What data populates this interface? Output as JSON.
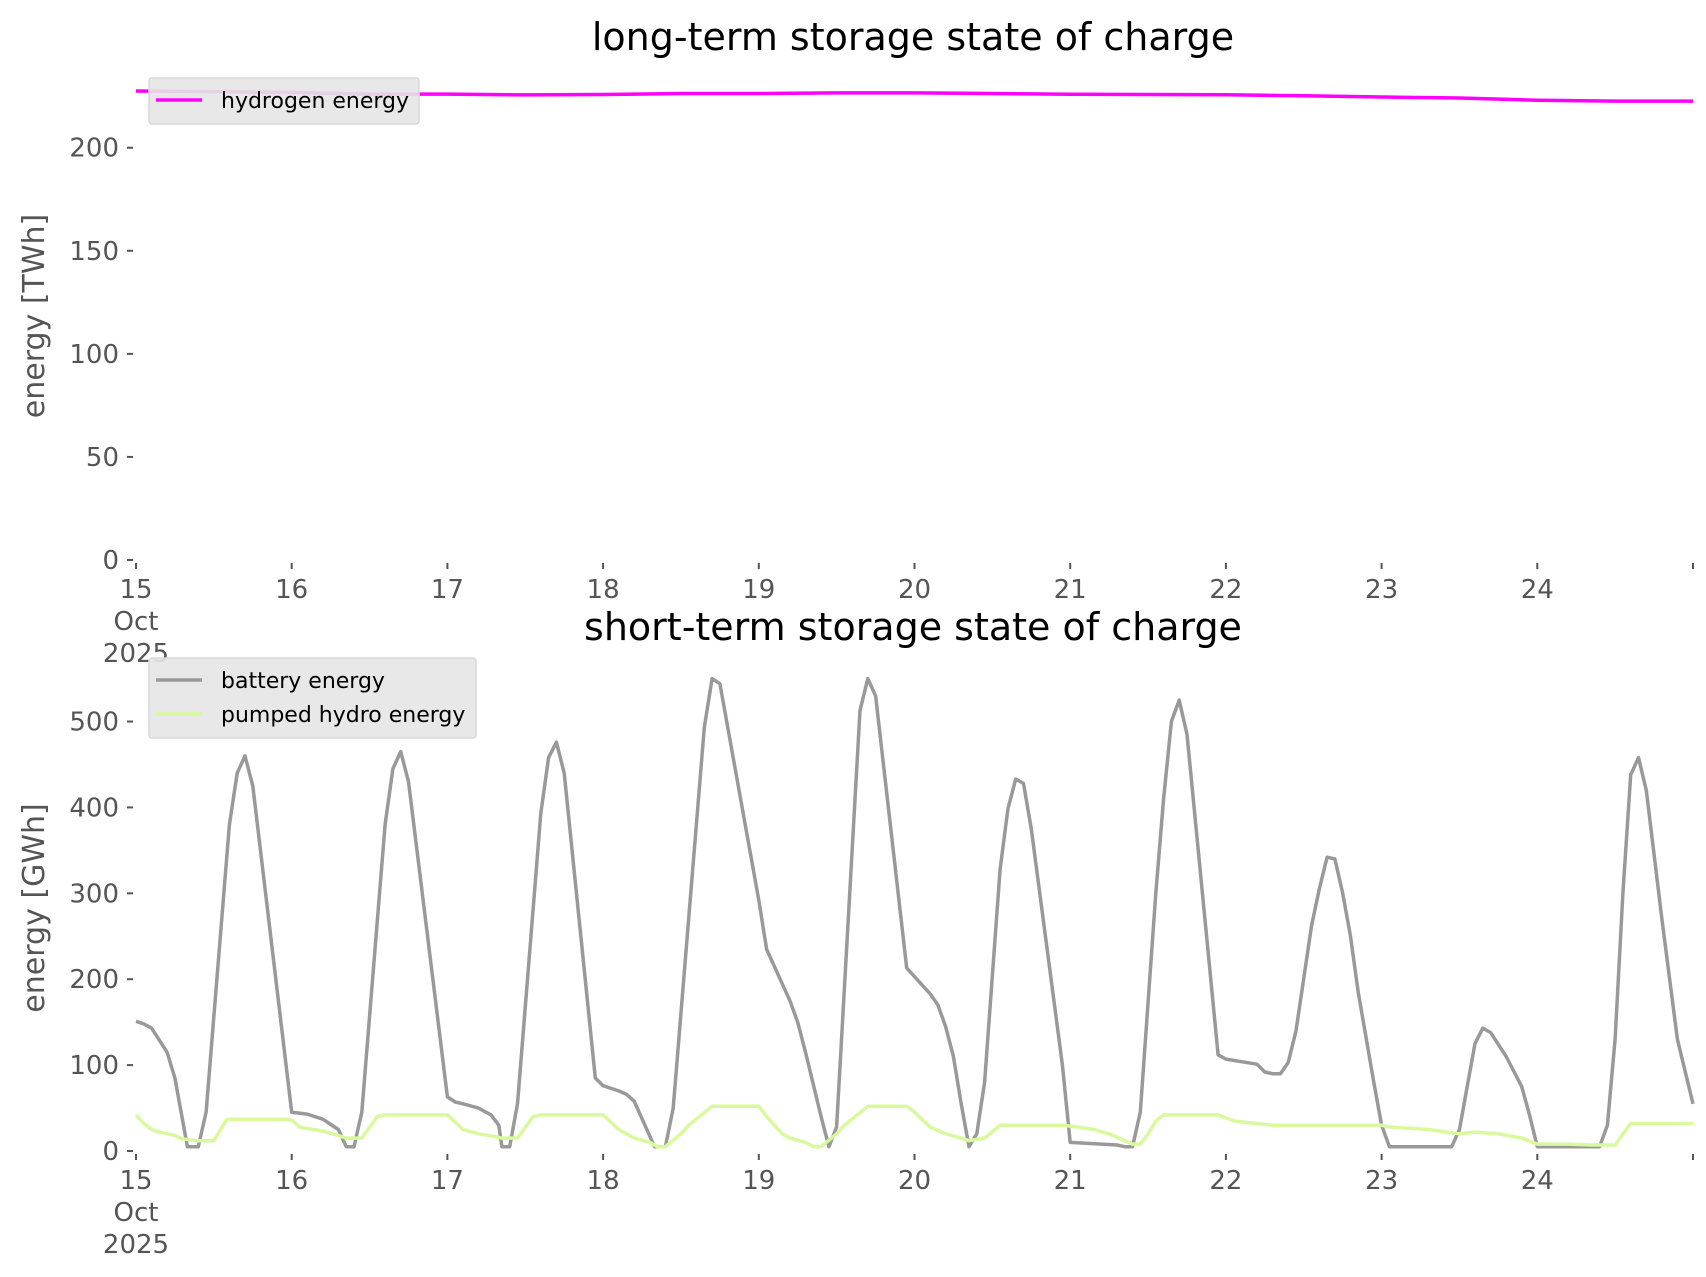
{
  "chart_data": [
    {
      "type": "line",
      "title": "long-term storage state of charge",
      "xlabel": "",
      "ylabel": "energy [TWh]",
      "xlim": [
        "2025-10-15",
        "2025-10-25"
      ],
      "ylim": [
        0,
        228
      ],
      "yticks": [
        0,
        50,
        100,
        150,
        200
      ],
      "xtick_labels": [
        "15\nOct\n2025",
        "16",
        "17",
        "18",
        "19",
        "20",
        "21",
        "22",
        "23",
        "24"
      ],
      "grid": false,
      "legend_position": "top-left",
      "series": [
        {
          "name": "hydrogen energy",
          "color": "#ff00ff",
          "points": [
            [
              0,
              227.5
            ],
            [
              0.5,
              227.2
            ],
            [
              1,
              226.8
            ],
            [
              1.5,
              226.0
            ],
            [
              2,
              226.0
            ],
            [
              2.5,
              225.6
            ],
            [
              3,
              225.8
            ],
            [
              3.5,
              226.3
            ],
            [
              4,
              226.3
            ],
            [
              4.5,
              226.6
            ],
            [
              5,
              226.6
            ],
            [
              5.5,
              226.3
            ],
            [
              6,
              225.9
            ],
            [
              6.5,
              225.8
            ],
            [
              7,
              225.7
            ],
            [
              7.5,
              225.2
            ],
            [
              8,
              224.6
            ],
            [
              8.5,
              224.1
            ],
            [
              9,
              223.0
            ],
            [
              9.5,
              222.6
            ],
            [
              10,
              222.6
            ]
          ]
        }
      ]
    },
    {
      "type": "line",
      "title": "short-term storage state of charge",
      "xlabel": "",
      "ylabel": "energy [GWh]",
      "xlim": [
        "2025-10-15",
        "2025-10-25"
      ],
      "ylim": [
        0,
        560
      ],
      "yticks": [
        0,
        100,
        200,
        300,
        400,
        500
      ],
      "xtick_labels": [
        "15\nOct\n2025",
        "16",
        "17",
        "18",
        "19",
        "20",
        "21",
        "22",
        "23",
        "24"
      ],
      "grid": false,
      "legend_position": "top-left",
      "series": [
        {
          "name": "battery energy",
          "color": "#999999",
          "points": [
            [
              0,
              151
            ],
            [
              0.05,
              148
            ],
            [
              0.1,
              143
            ],
            [
              0.2,
              115
            ],
            [
              0.25,
              85
            ],
            [
              0.33,
              5
            ],
            [
              0.4,
              5
            ],
            [
              0.45,
              45
            ],
            [
              0.6,
              380
            ],
            [
              0.65,
              440
            ],
            [
              0.7,
              460
            ],
            [
              0.75,
              425
            ],
            [
              1.0,
              45
            ],
            [
              1.1,
              43
            ],
            [
              1.2,
              37
            ],
            [
              1.3,
              25
            ],
            [
              1.35,
              5
            ],
            [
              1.4,
              5
            ],
            [
              1.45,
              45
            ],
            [
              1.6,
              380
            ],
            [
              1.65,
              445
            ],
            [
              1.7,
              465
            ],
            [
              1.75,
              430
            ],
            [
              2.0,
              63
            ],
            [
              2.05,
              57
            ],
            [
              2.1,
              55
            ],
            [
              2.2,
              50
            ],
            [
              2.28,
              42
            ],
            [
              2.33,
              30
            ],
            [
              2.35,
              5
            ],
            [
              2.4,
              5
            ],
            [
              2.45,
              55
            ],
            [
              2.6,
              393
            ],
            [
              2.65,
              458
            ],
            [
              2.7,
              476
            ],
            [
              2.75,
              440
            ],
            [
              2.95,
              85
            ],
            [
              3.0,
              76
            ],
            [
              3.1,
              70
            ],
            [
              3.15,
              66
            ],
            [
              3.2,
              58
            ],
            [
              3.33,
              5
            ],
            [
              3.4,
              5
            ],
            [
              3.45,
              50
            ],
            [
              3.65,
              493
            ],
            [
              3.7,
              550
            ],
            [
              3.75,
              544
            ],
            [
              4.0,
              292
            ],
            [
              4.05,
              235
            ],
            [
              4.2,
              175
            ],
            [
              4.25,
              150
            ],
            [
              4.3,
              115
            ],
            [
              4.4,
              40
            ],
            [
              4.45,
              5
            ],
            [
              4.5,
              28
            ],
            [
              4.65,
              513
            ],
            [
              4.7,
              550
            ],
            [
              4.75,
              530
            ],
            [
              4.95,
              213
            ],
            [
              5.1,
              183
            ],
            [
              5.15,
              170
            ],
            [
              5.2,
              145
            ],
            [
              5.25,
              110
            ],
            [
              5.3,
              55
            ],
            [
              5.35,
              5
            ],
            [
              5.4,
              20
            ],
            [
              5.45,
              80
            ],
            [
              5.55,
              328
            ],
            [
              5.6,
              398
            ],
            [
              5.65,
              433
            ],
            [
              5.7,
              428
            ],
            [
              5.75,
              375
            ],
            [
              5.95,
              100
            ],
            [
              6.0,
              10
            ],
            [
              6.1,
              9
            ],
            [
              6.2,
              8
            ],
            [
              6.3,
              7
            ],
            [
              6.35,
              5
            ],
            [
              6.4,
              5
            ],
            [
              6.45,
              45
            ],
            [
              6.55,
              300
            ],
            [
              6.6,
              410
            ],
            [
              6.65,
              500
            ],
            [
              6.7,
              525
            ],
            [
              6.75,
              485
            ],
            [
              6.95,
              112
            ],
            [
              7.0,
              107
            ],
            [
              7.1,
              104
            ],
            [
              7.2,
              101
            ],
            [
              7.25,
              92
            ],
            [
              7.3,
              90
            ],
            [
              7.35,
              90
            ],
            [
              7.4,
              103
            ],
            [
              7.45,
              140
            ],
            [
              7.55,
              262
            ],
            [
              7.6,
              305
            ],
            [
              7.65,
              342
            ],
            [
              7.7,
              340
            ],
            [
              7.75,
              300
            ],
            [
              7.8,
              250
            ],
            [
              7.85,
              185
            ],
            [
              7.95,
              80
            ],
            [
              8.0,
              30
            ],
            [
              8.05,
              5
            ],
            [
              8.15,
              5
            ],
            [
              8.3,
              5
            ],
            [
              8.45,
              5
            ],
            [
              8.5,
              25
            ],
            [
              8.55,
              75
            ],
            [
              8.6,
              125
            ],
            [
              8.65,
              143
            ],
            [
              8.7,
              138
            ],
            [
              8.8,
              110
            ],
            [
              8.9,
              75
            ],
            [
              8.95,
              42
            ],
            [
              9.0,
              5
            ],
            [
              9.1,
              5
            ],
            [
              9.2,
              5
            ],
            [
              9.3,
              5
            ],
            [
              9.4,
              5
            ],
            [
              9.45,
              30
            ],
            [
              9.5,
              130
            ],
            [
              9.55,
              300
            ],
            [
              9.6,
              438
            ],
            [
              9.65,
              458
            ],
            [
              9.7,
              420
            ],
            [
              9.8,
              270
            ],
            [
              9.9,
              130
            ],
            [
              10.0,
              55
            ]
          ]
        },
        {
          "name": "pumped hydro energy",
          "color": "#d9f99d",
          "points": [
            [
              0,
              42
            ],
            [
              0.05,
              32
            ],
            [
              0.1,
              25
            ],
            [
              0.15,
              22
            ],
            [
              0.25,
              18
            ],
            [
              0.3,
              14
            ],
            [
              0.4,
              12
            ],
            [
              0.45,
              12
            ],
            [
              0.5,
              12
            ],
            [
              0.58,
              36
            ],
            [
              0.6,
              37
            ],
            [
              0.9,
              37
            ],
            [
              0.95,
              37
            ],
            [
              1.0,
              36
            ],
            [
              1.05,
              28
            ],
            [
              1.2,
              23
            ],
            [
              1.3,
              18
            ],
            [
              1.35,
              15
            ],
            [
              1.45,
              15
            ],
            [
              1.55,
              40
            ],
            [
              1.6,
              42
            ],
            [
              2.0,
              42
            ],
            [
              2.1,
              25
            ],
            [
              2.2,
              20
            ],
            [
              2.3,
              17
            ],
            [
              2.35,
              15
            ],
            [
              2.45,
              15
            ],
            [
              2.55,
              40
            ],
            [
              2.6,
              42
            ],
            [
              3.0,
              42
            ],
            [
              3.1,
              25
            ],
            [
              3.2,
              15
            ],
            [
              3.3,
              10
            ],
            [
              3.35,
              5
            ],
            [
              3.4,
              5
            ],
            [
              3.5,
              20
            ],
            [
              3.55,
              30
            ],
            [
              3.7,
              52
            ],
            [
              4.0,
              52
            ],
            [
              4.05,
              40
            ],
            [
              4.15,
              20
            ],
            [
              4.2,
              15
            ],
            [
              4.3,
              10
            ],
            [
              4.35,
              5
            ],
            [
              4.4,
              5
            ],
            [
              4.5,
              20
            ],
            [
              4.55,
              30
            ],
            [
              4.7,
              52
            ],
            [
              4.95,
              52
            ],
            [
              5.0,
              45
            ],
            [
              5.1,
              28
            ],
            [
              5.2,
              20
            ],
            [
              5.3,
              15
            ],
            [
              5.35,
              12
            ],
            [
              5.45,
              15
            ],
            [
              5.55,
              30
            ],
            [
              5.6,
              30
            ],
            [
              5.95,
              30
            ],
            [
              6.05,
              28
            ],
            [
              6.15,
              25
            ],
            [
              6.25,
              20
            ],
            [
              6.35,
              12
            ],
            [
              6.4,
              8
            ],
            [
              6.45,
              8
            ],
            [
              6.5,
              20
            ],
            [
              6.55,
              35
            ],
            [
              6.6,
              42
            ],
            [
              6.95,
              42
            ],
            [
              7.05,
              35
            ],
            [
              7.15,
              33
            ],
            [
              7.2,
              32
            ],
            [
              7.3,
              30
            ],
            [
              8.0,
              30
            ],
            [
              8.05,
              28
            ],
            [
              8.3,
              25
            ],
            [
              8.5,
              20
            ],
            [
              8.6,
              22
            ],
            [
              8.75,
              20
            ],
            [
              8.9,
              15
            ],
            [
              9.0,
              8
            ],
            [
              9.2,
              8
            ],
            [
              9.35,
              7
            ],
            [
              9.5,
              7
            ],
            [
              9.55,
              20
            ],
            [
              9.6,
              32
            ],
            [
              9.65,
              32
            ],
            [
              10.0,
              32
            ]
          ]
        }
      ]
    }
  ]
}
